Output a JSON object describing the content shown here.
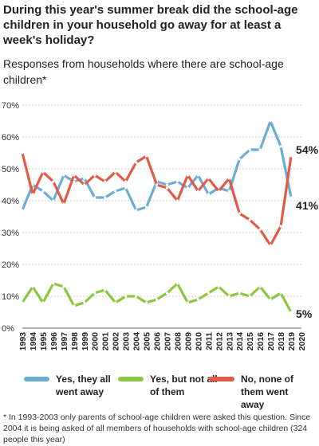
{
  "title": "During this year's summer break did the school-age children in your household go away for at least a week's holiday?",
  "subtitle": "Responses from households where there are school-age children*",
  "footnote": "* In 1993-2003 only parents of school-age children were asked this question. Since 2004 it is being asked of all members of households with school-age children (324 people this year)",
  "chart_data": {
    "type": "line",
    "title": "During this year's summer break did the school-age children in your household go away for at least a week's holiday?",
    "x": [
      "1993",
      "1994",
      "1995",
      "1996",
      "1997",
      "1998",
      "1999",
      "2000",
      "2001",
      "2002",
      "2003",
      "2004",
      "2005",
      "2006",
      "2007",
      "2008",
      "2009",
      "2010",
      "2011",
      "2012",
      "2013",
      "2014",
      "2015",
      "2016",
      "2017",
      "2018",
      "2019",
      "2020"
    ],
    "ylim": [
      0,
      70
    ],
    "yticks": [
      0,
      10,
      20,
      30,
      40,
      50,
      60,
      70
    ],
    "ytick_labels": [
      "0%",
      "10%",
      "20%",
      "30%",
      "40%",
      "50%",
      "60%",
      "70%"
    ],
    "grid": "horizontal",
    "legend_position": "bottom",
    "series": [
      {
        "name": "Yes, they all went away",
        "color": "#6aaed6",
        "end_label": "41%",
        "values": [
          37,
          45,
          43,
          40,
          48,
          46,
          47,
          41,
          41,
          43,
          44,
          37,
          38,
          46,
          45,
          46,
          44,
          48,
          42,
          44,
          43,
          53,
          56,
          56,
          65,
          57,
          41,
          null
        ]
      },
      {
        "name": "Yes, but not all of them",
        "color": "#8dc63f",
        "end_label": "5%",
        "values": [
          8,
          13,
          8,
          14,
          13,
          7,
          8,
          11,
          12,
          8,
          10,
          10,
          8,
          9,
          11,
          14,
          8,
          9,
          11,
          13,
          10,
          11,
          10,
          13,
          9,
          11,
          5,
          null
        ]
      },
      {
        "name": "No, none of them went away",
        "color": "#e05a47",
        "end_label": "54%",
        "values": [
          55,
          42,
          49,
          46,
          39,
          48,
          45,
          48,
          46,
          49,
          46,
          52,
          54,
          45,
          44,
          40,
          48,
          43,
          47,
          43,
          47,
          36,
          34,
          31,
          26,
          32,
          54,
          null
        ]
      }
    ]
  }
}
